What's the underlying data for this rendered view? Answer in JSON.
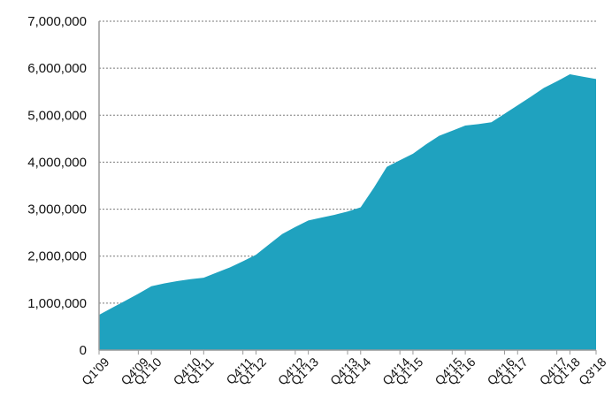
{
  "chart_data": {
    "type": "area",
    "title": "",
    "xlabel": "",
    "ylabel": "",
    "ylim": [
      0,
      7000000
    ],
    "yticks": [
      "0",
      "1,000,000",
      "2,000,000",
      "3,000,000",
      "4,000,000",
      "5,000,000",
      "6,000,000",
      "7,000,000"
    ],
    "grid": true,
    "legend": "none",
    "color": "#1fa2bf",
    "categories": [
      "Q1'09",
      "Q2'09",
      "Q3'09",
      "Q4'09",
      "Q1'10",
      "Q2'10",
      "Q3'10",
      "Q4'10",
      "Q1'11",
      "Q2'11",
      "Q3'11",
      "Q4'11",
      "Q1'12",
      "Q2'12",
      "Q3'12",
      "Q4'12",
      "Q1'13",
      "Q2'13",
      "Q3'13",
      "Q4'13",
      "Q1'14",
      "Q2'14",
      "Q3'14",
      "Q4'14",
      "Q1'15",
      "Q2'15",
      "Q3'15",
      "Q4'15",
      "Q1'16",
      "Q2'16",
      "Q3'16",
      "Q4'16",
      "Q1'17",
      "Q2'17",
      "Q3'17",
      "Q4'17",
      "Q1'18",
      "Q2'18",
      "Q3'18"
    ],
    "x_tick_labels": [
      "Q1'09",
      "Q4'09",
      "Q1'10",
      "Q4'10",
      "Q1'11",
      "Q4'11",
      "Q1'12",
      "Q4'12",
      "Q1'13",
      "Q4'13",
      "Q1'14",
      "Q4'14",
      "Q1'15",
      "Q4'15",
      "Q1'16",
      "Q4'16",
      "Q1'17",
      "Q4'17",
      "Q1'18",
      "Q3'18"
    ],
    "series": [
      {
        "values": [
          750000,
          900000,
          1050000,
          1200000,
          1360000,
          1420000,
          1470000,
          1510000,
          1540000,
          1650000,
          1760000,
          1890000,
          2030000,
          2250000,
          2470000,
          2620000,
          2760000,
          2820000,
          2880000,
          2950000,
          3040000,
          3450000,
          3900000,
          4040000,
          4180000,
          4380000,
          4560000,
          4670000,
          4780000,
          4810000,
          4850000,
          5030000,
          5210000,
          5390000,
          5580000,
          5720000,
          5870000,
          5820000,
          5770000
        ]
      }
    ]
  }
}
